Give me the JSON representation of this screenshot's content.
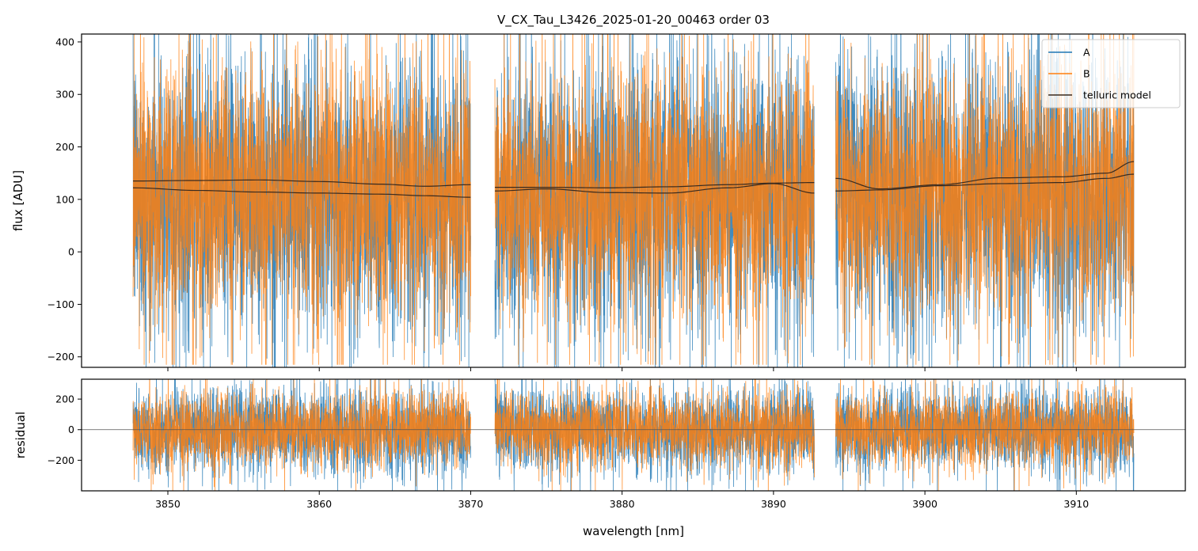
{
  "figure": {
    "title": "V_CX_Tau_L3426_2025-01-20_00463  order 03"
  },
  "chart_data": [
    {
      "type": "line",
      "panel": "flux",
      "ylabel": "flux [ADU]",
      "xlabel": "",
      "xlim": [
        3844.3,
        3917.2
      ],
      "ylim": [
        -220,
        415
      ],
      "xticks": [
        3850,
        3860,
        3870,
        3880,
        3890,
        3900,
        3910
      ],
      "yticks": [
        -200,
        -100,
        0,
        100,
        200,
        300,
        400
      ],
      "ytick_labels": [
        "−200",
        "−100",
        "0",
        "100",
        "200",
        "300",
        "400"
      ],
      "segments": [
        [
          3847.7,
          3870.0
        ],
        [
          3871.6,
          3892.7
        ],
        [
          3894.1,
          3913.8
        ]
      ],
      "legend": {
        "placement": "top-right",
        "entries": [
          {
            "label": "A",
            "color": "#1f77b4"
          },
          {
            "label": "B",
            "color": "#ff7f0e"
          },
          {
            "label": "telluric model",
            "color": "#3a2a1e"
          }
        ]
      },
      "series": [
        {
          "name": "A",
          "color": "#1f77b4",
          "kind": "noisy-spectrum",
          "center": 105,
          "spread": 135,
          "spike_up": 520,
          "spike_down": -230
        },
        {
          "name": "B",
          "color": "#ff7f0e",
          "kind": "noisy-spectrum",
          "center": 110,
          "spread": 125,
          "spike_up": 520,
          "spike_down": -215
        },
        {
          "name": "telluric model",
          "color": "#3a2a1e",
          "kind": "model",
          "curves": [
            {
              "x": [
                3847.7,
                3852,
                3856,
                3860,
                3864,
                3867,
                3870.0
              ],
              "y": [
                135,
                136,
                137,
                134,
                129,
                125,
                128
              ]
            },
            {
              "x": [
                3847.7,
                3852,
                3856,
                3860,
                3864,
                3867,
                3870.0
              ],
              "y": [
                122,
                117,
                114,
                112,
                110,
                107,
                104
              ]
            },
            {
              "x": [
                3871.6,
                3875,
                3879,
                3883,
                3887,
                3890,
                3892.7
              ],
              "y": [
                123,
                123,
                122,
                124,
                128,
                131,
                132
              ]
            },
            {
              "x": [
                3871.6,
                3875,
                3879,
                3883,
                3887,
                3890,
                3892.7
              ],
              "y": [
                116,
                120,
                113,
                112,
                122,
                130,
                112
              ]
            },
            {
              "x": [
                3894.1,
                3897,
                3901,
                3905,
                3909,
                3912,
                3913.8
              ],
              "y": [
                140,
                120,
                128,
                141,
                143,
                150,
                172
              ]
            },
            {
              "x": [
                3894.1,
                3897,
                3901,
                3905,
                3909,
                3912,
                3913.8
              ],
              "y": [
                116,
                118,
                126,
                130,
                132,
                140,
                148
              ]
            }
          ]
        }
      ]
    },
    {
      "type": "line",
      "panel": "residual",
      "ylabel": "residual",
      "xlabel": "wavelength [nm]",
      "xlim": [
        3844.3,
        3917.2
      ],
      "ylim": [
        -400,
        330
      ],
      "xticks": [
        3850,
        3860,
        3870,
        3880,
        3890,
        3900,
        3910
      ],
      "yticks": [
        -200,
        0,
        200
      ],
      "ytick_labels": [
        "−200",
        "0",
        "200"
      ],
      "zero_line": true,
      "segments": [
        [
          3847.7,
          3870.0
        ],
        [
          3871.6,
          3892.7
        ],
        [
          3894.1,
          3913.8
        ]
      ],
      "series": [
        {
          "name": "A",
          "color": "#1f77b4",
          "kind": "noisy-residual",
          "spread": 140
        },
        {
          "name": "B",
          "color": "#ff7f0e",
          "kind": "noisy-residual",
          "spread": 125
        }
      ]
    }
  ]
}
